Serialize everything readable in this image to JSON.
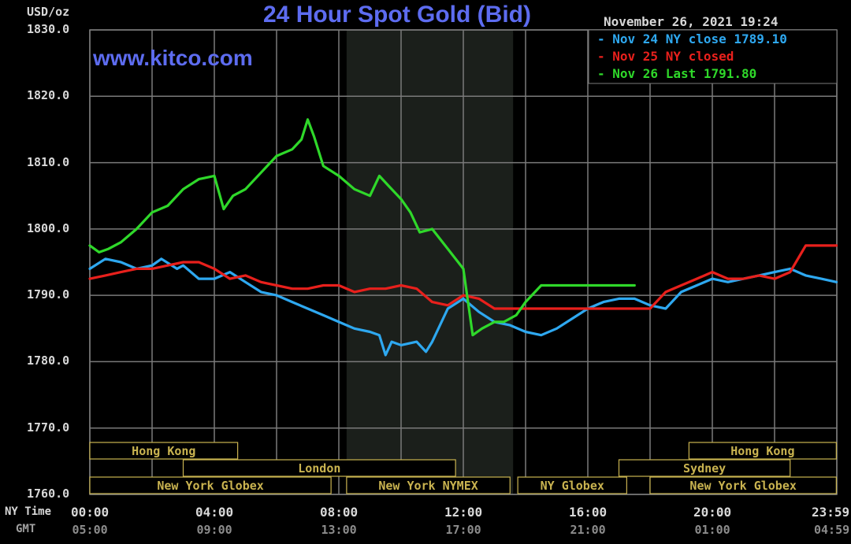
{
  "header": {
    "unit": "USD/oz",
    "title": "24 Hour Spot Gold (Bid)",
    "timestamp": "November 26, 2021 19:24",
    "watermark": "www.kitco.com"
  },
  "axis_labels": {
    "ny_time": "NY Time",
    "gmt": "GMT"
  },
  "colors": {
    "background": "#000000",
    "grid": "#7a7a7a",
    "nymex_shade": "#1b1f1b",
    "title": "#5d6cf0",
    "series_nov24": "#2ea8f0",
    "series_nov25": "#e8201c",
    "series_nov26": "#2fd82a",
    "session_border": "#c9b350"
  },
  "sessions": [
    {
      "label": "Hong Kong",
      "start": "00:00",
      "end": "04:45",
      "row": 1
    },
    {
      "label": "London",
      "start": "03:00",
      "end": "11:45",
      "row": 2
    },
    {
      "label": "New York Globex",
      "start": "00:00",
      "end": "07:45",
      "row": 3
    },
    {
      "label": "New York NYMEX",
      "start": "08:15",
      "end": "13:30",
      "row": 3
    },
    {
      "label": "NY Globex",
      "start": "13:45",
      "end": "17:15",
      "row": 3
    },
    {
      "label": "Hong Kong",
      "start": "19:15",
      "end": "23:59",
      "row": 1
    },
    {
      "label": "Sydney",
      "start": "17:00",
      "end": "22:30",
      "row": 2
    },
    {
      "label": "New York Globex",
      "start": "18:00",
      "end": "23:59",
      "row": 3
    }
  ],
  "chart_data": {
    "type": "line",
    "title": "24 Hour Spot Gold (Bid)",
    "ylabel": "USD/oz",
    "xlabel": "NY Time",
    "ylim": [
      1760,
      1830
    ],
    "xlim": [
      0,
      24
    ],
    "nymex_shade": [
      8.25,
      13.6
    ],
    "yticks": [
      "1830.0",
      "1820.0",
      "1810.0",
      "1800.0",
      "1790.0",
      "1780.0",
      "1770.0",
      "1760.0"
    ],
    "xticks_ny": [
      "00:00",
      "04:00",
      "08:00",
      "12:00",
      "16:00",
      "20:00",
      "23:59"
    ],
    "xticks_gmt": [
      "05:00",
      "09:00",
      "13:00",
      "17:00",
      "21:00",
      "01:00",
      "04:59"
    ],
    "grid": true,
    "legend_position": "top-right",
    "series": [
      {
        "name": "Nov 24 NY close 1789.10",
        "x": [
          0,
          0.5,
          1,
          1.5,
          2,
          2.3,
          2.8,
          3,
          3.5,
          4,
          4.5,
          5,
          5.5,
          6,
          6.5,
          7,
          7.5,
          8,
          8.5,
          9,
          9.3,
          9.5,
          9.7,
          10,
          10.5,
          10.8,
          11,
          11.5,
          12,
          12.5,
          13,
          13.5,
          14,
          14.5,
          15,
          15.5,
          16,
          16.5,
          17,
          17.5,
          18,
          18.5,
          19,
          19.5,
          20,
          20.5,
          21,
          21.5,
          22,
          22.5,
          23,
          23.5,
          23.99
        ],
        "y": [
          1794,
          1795.5,
          1795,
          1794,
          1794.5,
          1795.5,
          1794,
          1794.5,
          1792.5,
          1792.5,
          1793.5,
          1792,
          1790.5,
          1790,
          1789,
          1788,
          1787,
          1786,
          1785,
          1784.5,
          1784,
          1781,
          1783,
          1782.5,
          1783,
          1781.5,
          1783,
          1788,
          1789.5,
          1787.5,
          1786,
          1785.5,
          1784.5,
          1784,
          1785,
          1786.5,
          1788,
          1789,
          1789.5,
          1789.5,
          1788.5,
          1788,
          1790.5,
          1791.5,
          1792.5,
          1792,
          1792.5,
          1793,
          1793.5,
          1794,
          1793,
          1792.5,
          1792
        ]
      },
      {
        "name": "Nov 25 NY closed",
        "x": [
          0,
          0.5,
          1,
          1.5,
          2,
          2.5,
          3,
          3.5,
          4,
          4.5,
          5,
          5.5,
          6,
          6.5,
          7,
          7.5,
          8,
          8.5,
          9,
          9.5,
          10,
          10.5,
          11,
          11.5,
          12,
          12.5,
          13,
          13.5,
          14,
          14.5,
          15,
          15.5,
          16,
          16.5,
          17,
          17.5,
          18,
          18.5,
          19,
          19.5,
          20,
          20.5,
          21,
          21.5,
          22,
          22.5,
          23,
          23.5,
          23.99
        ],
        "y": [
          1792.5,
          1793,
          1793.5,
          1794,
          1794,
          1794.5,
          1795,
          1795,
          1794,
          1792.5,
          1793,
          1792,
          1791.5,
          1791,
          1791,
          1791.5,
          1791.5,
          1790.5,
          1791,
          1791,
          1791.5,
          1791,
          1789,
          1788.5,
          1790,
          1789.5,
          1788,
          1788,
          1788,
          1788,
          1788,
          1788,
          1788,
          1788,
          1788,
          1788,
          1788,
          1790.5,
          1791.5,
          1792.5,
          1793.5,
          1792.5,
          1792.5,
          1793,
          1792.5,
          1793.5,
          1797.5,
          1797.5,
          1797.5
        ]
      },
      {
        "name": "Nov 26 Last 1791.80",
        "x": [
          0,
          0.3,
          0.6,
          1,
          1.5,
          2,
          2.5,
          3,
          3.5,
          4,
          4.3,
          4.6,
          5,
          5.5,
          6,
          6.5,
          6.8,
          7,
          7.2,
          7.5,
          8,
          8.5,
          9,
          9.3,
          9.6,
          10,
          10.3,
          10.6,
          11,
          11.5,
          12,
          12.3,
          12.6,
          13,
          13.3,
          13.7,
          14,
          14.5,
          15,
          15.5,
          16,
          16.5,
          17,
          17.5
        ],
        "y": [
          1797.5,
          1796.5,
          1797,
          1798,
          1800,
          1802.5,
          1803.5,
          1806,
          1807.5,
          1808,
          1803,
          1805,
          1806,
          1808.5,
          1811,
          1812,
          1813.5,
          1816.5,
          1814,
          1809.5,
          1808,
          1806,
          1805,
          1808,
          1806.5,
          1804.5,
          1802.5,
          1799.5,
          1800,
          1797,
          1794,
          1784,
          1785,
          1786,
          1786,
          1787,
          1789,
          1791.5,
          1791.5,
          1791.5,
          1791.5,
          1791.5,
          1791.5,
          1791.5
        ]
      }
    ]
  }
}
